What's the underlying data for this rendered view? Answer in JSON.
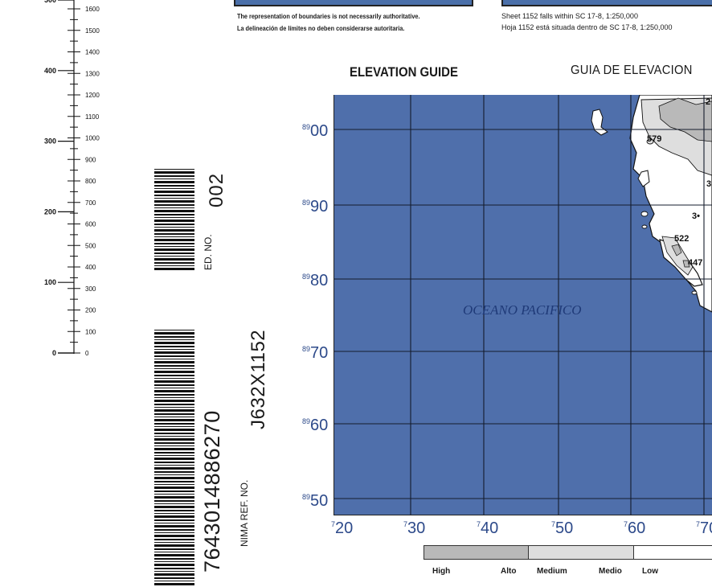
{
  "scale": {
    "meters": [
      "500",
      "400",
      "300",
      "200",
      "100",
      "0"
    ],
    "feet": [
      "1600",
      "1500",
      "1400",
      "1300",
      "1200",
      "1100",
      "1000",
      "900",
      "800",
      "700",
      "600",
      "500",
      "400",
      "300",
      "200",
      "100",
      "0"
    ]
  },
  "margin": {
    "ed_label": "ED. NO.",
    "ed_value": "002",
    "stock_number": "7643014886270",
    "nima_label": "NIMA REF. NO.",
    "ref_value": "J632X1152"
  },
  "notes": {
    "boundary_en": "The representation of boundaries is not necessarily authoritative.",
    "boundary_es": "La delineación de límites no deben considerarse autoritaria.",
    "sheet_en": "Sheet 1152 falls within SC 17-8, 1:250,000",
    "sheet_es": "Hoja 1152 está situada dentro de SC 17-8, 1:250,000"
  },
  "titles": {
    "elevation_guide": "ELEVATION GUIDE",
    "guia": "GUIA DE ELEVACION"
  },
  "map": {
    "ocean_label": "OCEANO PACIFICO",
    "elevations": [
      "579",
      "3•",
      "522",
      "447",
      "2",
      "3"
    ],
    "northings": [
      {
        "sup": "89",
        "big": "00"
      },
      {
        "sup": "89",
        "big": "90"
      },
      {
        "sup": "89",
        "big": "80"
      },
      {
        "sup": "89",
        "big": "70"
      },
      {
        "sup": "89",
        "big": "60"
      },
      {
        "sup": "89",
        "big": "50"
      }
    ],
    "eastings": [
      {
        "sup": "7",
        "big": "20"
      },
      {
        "sup": "7",
        "big": "30"
      },
      {
        "sup": "7",
        "big": "40"
      },
      {
        "sup": "7",
        "big": "50"
      },
      {
        "sup": "7",
        "big": "60"
      },
      {
        "sup": "7",
        "big": "70"
      }
    ],
    "colors": {
      "water": "#4f6fab",
      "land_high": "#b9b9b9",
      "land_medium": "#dedede",
      "land_low": "#ffffff",
      "grid": "#141c2c"
    }
  },
  "legend": {
    "high": "High",
    "alto": "Alto",
    "medium": "Medium",
    "medio": "Medio",
    "low": "Low"
  }
}
